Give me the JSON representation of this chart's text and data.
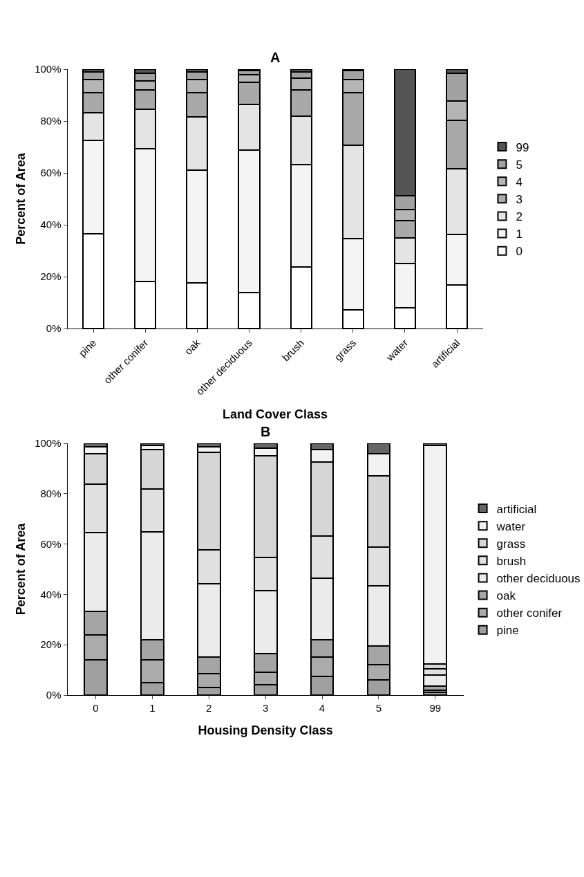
{
  "chart_data": [
    {
      "type": "bar",
      "stacked": true,
      "title": "A",
      "xlabel": "Land Cover Class",
      "ylabel": "Percent of Area",
      "grid": false,
      "legend": "right",
      "categories": [
        "pine",
        "other conifer",
        "oak",
        "other deciduous",
        "brush",
        "grass",
        "water",
        "artificial"
      ],
      "ylim": [
        0,
        100
      ],
      "yticks": [
        {
          "value": 0,
          "label": "0%"
        },
        {
          "value": 20,
          "label": "20%"
        },
        {
          "value": 40,
          "label": "40%"
        },
        {
          "value": 60,
          "label": "60%"
        },
        {
          "value": 80,
          "label": "80%"
        },
        {
          "value": 100,
          "label": "100%"
        }
      ],
      "series": [
        {
          "name": "0",
          "color": "#ffffff",
          "values": [
            36.5,
            18.1,
            17.7,
            13.8,
            23.8,
            7.3,
            8.0,
            16.9
          ]
        },
        {
          "name": "1",
          "color": "#f4f4f4",
          "values": [
            36.0,
            51.3,
            43.4,
            55.0,
            39.3,
            27.5,
            17.0,
            19.4
          ]
        },
        {
          "name": "2",
          "color": "#e4e4e4",
          "values": [
            10.8,
            15.2,
            20.4,
            17.6,
            18.7,
            35.9,
            10.0,
            25.4
          ]
        },
        {
          "name": "3",
          "color": "#a9a9a9",
          "values": [
            7.7,
            7.4,
            9.5,
            8.6,
            10.2,
            20.3,
            6.7,
            18.5
          ]
        },
        {
          "name": "4",
          "color": "#b5b5b5",
          "values": [
            5.0,
            3.5,
            5.0,
            3.0,
            4.5,
            5.0,
            4.1,
            7.5
          ]
        },
        {
          "name": "5",
          "color": "#a2a2a2",
          "values": [
            3.0,
            3.0,
            3.0,
            1.5,
            2.5,
            3.5,
            5.5,
            10.8
          ]
        },
        {
          "name": "99",
          "color": "#555555",
          "values": [
            1.0,
            1.5,
            1.0,
            0.5,
            1.0,
            0.5,
            48.7,
            1.5
          ]
        }
      ]
    },
    {
      "type": "bar",
      "stacked": true,
      "title": "B",
      "xlabel": "Housing Density Class",
      "ylabel": "Percent of Area",
      "grid": false,
      "legend": "right",
      "categories": [
        "0",
        "1",
        "2",
        "3",
        "4",
        "5",
        "99"
      ],
      "ylim": [
        0,
        100
      ],
      "yticks": [
        {
          "value": 0,
          "label": "0%"
        },
        {
          "value": 20,
          "label": "20%"
        },
        {
          "value": 40,
          "label": "40%"
        },
        {
          "value": 60,
          "label": "60%"
        },
        {
          "value": 80,
          "label": "80%"
        },
        {
          "value": 100,
          "label": "100%"
        }
      ],
      "series": [
        {
          "name": "pine",
          "color": "#a0a0a0",
          "values": [
            14,
            5,
            3,
            4,
            7.5,
            6,
            1
          ]
        },
        {
          "name": "other conifer",
          "color": "#ababab",
          "values": [
            10,
            9,
            5.5,
            5,
            7.5,
            6,
            1
          ]
        },
        {
          "name": "oak",
          "color": "#a5a5a5",
          "values": [
            9.2,
            8,
            6.5,
            7.5,
            7,
            7.5,
            1.5
          ]
        },
        {
          "name": "other deciduous",
          "color": "#ebebeb",
          "values": [
            31.4,
            42.9,
            29.2,
            25,
            24.4,
            24,
            4.5
          ]
        },
        {
          "name": "brush",
          "color": "#e0e0e0",
          "values": [
            19.2,
            17.1,
            13.4,
            13.3,
            16.9,
            15.2,
            2.5
          ]
        },
        {
          "name": "grass",
          "color": "#d6d6d6",
          "values": [
            12.1,
            15.6,
            38.9,
            40.3,
            29.4,
            28.4,
            2
          ]
        },
        {
          "name": "water",
          "color": "#f2f2f2",
          "values": [
            2.6,
            1.6,
            2.0,
            3.1,
            4.9,
            8.7,
            86.8
          ]
        },
        {
          "name": "artificial",
          "color": "#666666",
          "values": [
            1.5,
            0.8,
            1.5,
            1.8,
            2.4,
            4.2,
            0.7
          ]
        }
      ]
    }
  ]
}
